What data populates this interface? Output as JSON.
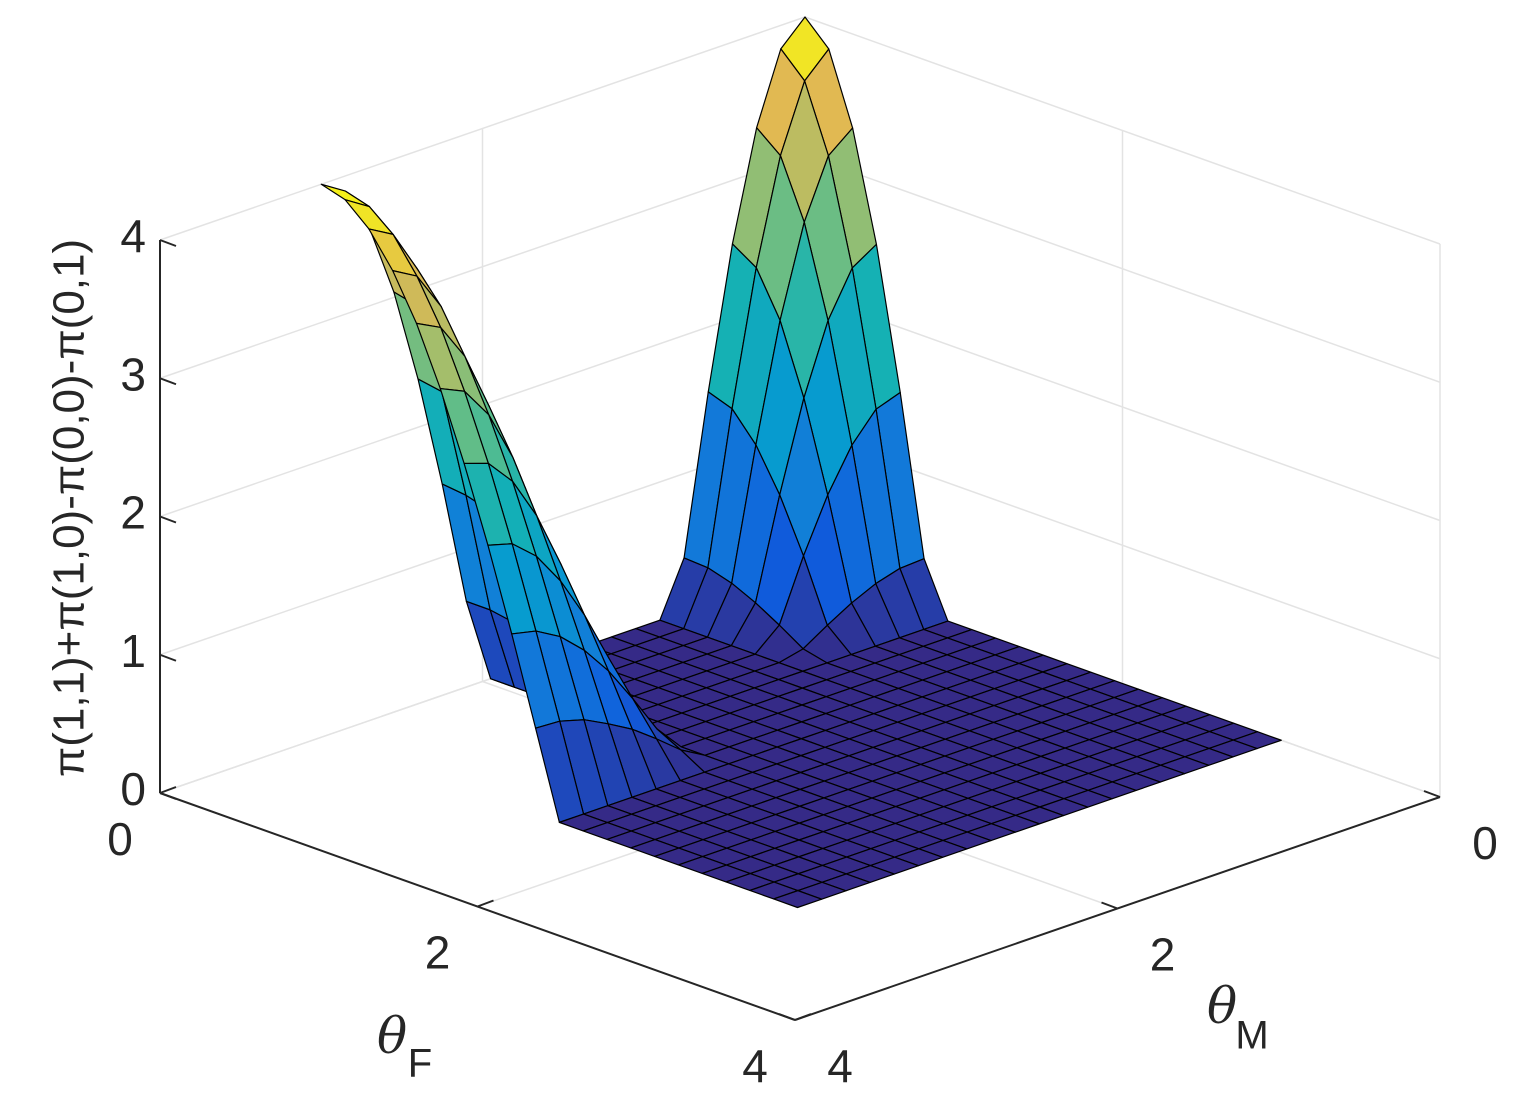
{
  "chart_data": {
    "type": "surface",
    "xlabel": {
      "text": "θ",
      "subscript": "F"
    },
    "ylabel": {
      "text": "θ",
      "subscript": "M"
    },
    "zlabel": "π(1,1)+π(1,0)-π(0,0)-π(0,1)",
    "x": [
      0,
      0.15,
      0.3,
      0.45,
      0.6,
      0.75,
      0.9,
      1.05,
      1.2,
      1.35,
      1.5,
      1.65,
      1.8,
      1.95,
      2.1,
      2.25,
      2.4,
      2.55,
      2.7,
      2.85,
      3
    ],
    "y": [
      0,
      0.15,
      0.3,
      0.45,
      0.6,
      0.75,
      0.9,
      1.05,
      1.2,
      1.35,
      1.5,
      1.65,
      1.8,
      1.95,
      2.1,
      2.25,
      2.4,
      2.55,
      2.7,
      2.85,
      3
    ],
    "z": [
      [
        4,
        3.83,
        3.32,
        2.54,
        1.53,
        0.39,
        0,
        0,
        0,
        0,
        0,
        0,
        0,
        0,
        0.62,
        1.53,
        2.35,
        3.04,
        3.56,
        3.89,
        4
      ],
      [
        3.83,
        3.66,
        3.18,
        2.43,
        1.47,
        0.38,
        0,
        0,
        0,
        0,
        0,
        0,
        0,
        0,
        0.62,
        1.51,
        2.32,
        3,
        3.52,
        3.84,
        3.95
      ],
      [
        3.32,
        3.18,
        2.76,
        2.11,
        1.27,
        0.33,
        0,
        0,
        0,
        0,
        0,
        0,
        0,
        0,
        0.59,
        1.46,
        2.24,
        2.89,
        3.39,
        3.7,
        3.8
      ],
      [
        2.54,
        2.43,
        2.11,
        1.61,
        0.97,
        0.25,
        0,
        0,
        0,
        0,
        0,
        0,
        0,
        0,
        0.56,
        1.37,
        2.1,
        2.71,
        3.18,
        3.46,
        3.56
      ],
      [
        1.53,
        1.47,
        1.27,
        0.97,
        0.59,
        0.15,
        0,
        0,
        0,
        0,
        0,
        0,
        0,
        0,
        0.5,
        1.24,
        1.9,
        2.46,
        2.88,
        3.15,
        3.24
      ],
      [
        0.39,
        0.38,
        0.33,
        0.25,
        0.15,
        0.04,
        0,
        0,
        0,
        0,
        0,
        0,
        0,
        0,
        0.44,
        1.08,
        1.66,
        2.15,
        2.52,
        2.75,
        2.83
      ],
      [
        0,
        0,
        0,
        0,
        0,
        0,
        0,
        0,
        0,
        0,
        0,
        0,
        0,
        0,
        0.37,
        0.9,
        1.38,
        1.79,
        2.1,
        2.29,
        2.35
      ],
      [
        0,
        0,
        0,
        0,
        0,
        0,
        0,
        0,
        0,
        0,
        0,
        0,
        0,
        0,
        0.28,
        0.7,
        1.07,
        1.38,
        1.62,
        1.77,
        1.82
      ],
      [
        0,
        0,
        0,
        0,
        0,
        0,
        0,
        0,
        0,
        0,
        0,
        0,
        0,
        0,
        0.19,
        0.47,
        0.73,
        0.94,
        1.1,
        1.2,
        1.24
      ],
      [
        0,
        0,
        0,
        0,
        0,
        0,
        0,
        0,
        0,
        0,
        0,
        0,
        0,
        0,
        0.1,
        0.24,
        0.37,
        0.47,
        0.56,
        0.61,
        0.62
      ],
      [
        0,
        0,
        0,
        0,
        0,
        0,
        0,
        0,
        0,
        0,
        0,
        0,
        0,
        0,
        0,
        0,
        0,
        0,
        0,
        0,
        0
      ],
      [
        0,
        0,
        0,
        0,
        0,
        0,
        0,
        0,
        0,
        0,
        0,
        0,
        0,
        0,
        0,
        0,
        0,
        0,
        0,
        0,
        0
      ],
      [
        0,
        0,
        0,
        0,
        0,
        0,
        0,
        0,
        0,
        0,
        0,
        0,
        0,
        0,
        0,
        0,
        0,
        0,
        0,
        0,
        0
      ],
      [
        0,
        0,
        0,
        0,
        0,
        0,
        0,
        0,
        0,
        0,
        0,
        0,
        0,
        0,
        0,
        0,
        0,
        0,
        0,
        0,
        0
      ],
      [
        0,
        0,
        0,
        0,
        0,
        0,
        0,
        0,
        0,
        0,
        0,
        0,
        0,
        0,
        0,
        0,
        0,
        0,
        0,
        0,
        0
      ],
      [
        0,
        0,
        0,
        0,
        0,
        0,
        0,
        0,
        0,
        0,
        0,
        0,
        0,
        0,
        0,
        0,
        0,
        0,
        0,
        0,
        0
      ],
      [
        0,
        0,
        0,
        0,
        0,
        0,
        0,
        0,
        0,
        0,
        0,
        0,
        0,
        0,
        0,
        0,
        0,
        0,
        0,
        0,
        0
      ],
      [
        0,
        0,
        0,
        0,
        0,
        0,
        0,
        0,
        0,
        0,
        0,
        0,
        0,
        0,
        0,
        0,
        0,
        0,
        0,
        0,
        0
      ],
      [
        0,
        0,
        0,
        0,
        0,
        0,
        0,
        0,
        0,
        0,
        0,
        0,
        0,
        0,
        0,
        0,
        0,
        0,
        0,
        0,
        0
      ],
      [
        0,
        0,
        0,
        0,
        0,
        0,
        0,
        0,
        0,
        0,
        0,
        0,
        0,
        0,
        0,
        0,
        0,
        0,
        0,
        0,
        0
      ],
      [
        0,
        0,
        0,
        0,
        0,
        0,
        0,
        0,
        0,
        0,
        0,
        0,
        0,
        0,
        0,
        0,
        0,
        0,
        0,
        0,
        0
      ]
    ],
    "xlim": [
      0,
      4
    ],
    "ylim": [
      0,
      4
    ],
    "zlim": [
      0,
      4
    ],
    "xticks": [
      0,
      2,
      4
    ],
    "yticks": [
      0,
      2,
      4
    ],
    "zticks": [
      0,
      1,
      2,
      3,
      4
    ],
    "grid": true,
    "colormap": [
      "#352a87",
      "#0f5cdd",
      "#127dd8",
      "#079ccf",
      "#15b1b4",
      "#59bd8c",
      "#a5be6b",
      "#e1b952",
      "#f9fb0e"
    ],
    "edgecolor": "#000000"
  }
}
